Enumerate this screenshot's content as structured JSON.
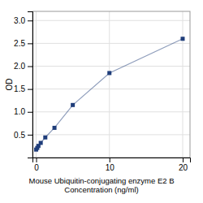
{
  "chart_data": {
    "type": "line",
    "xlabel": "Mouse Ubiquitin-conjugating enzyme E2 B\nConcentration (ng/ml)",
    "ylabel": "OD",
    "x": [
      0,
      0.156,
      0.3125,
      0.625,
      1.25,
      2.5,
      5,
      10,
      20
    ],
    "series": [
      {
        "values": [
          0.174,
          0.21,
          0.255,
          0.32,
          0.44,
          0.65,
          1.15,
          1.85,
          2.6
        ],
        "color": "#1f3d7a",
        "marker": "square"
      }
    ],
    "xlim": [
      -0.5,
      21
    ],
    "ylim": [
      0.0,
      3.2
    ],
    "xticks": [
      0,
      10,
      20
    ],
    "yticks": [
      0.5,
      {
        "value": 1,
        "label": "1.0"
      },
      1.5,
      {
        "value": 2,
        "label": "2.0"
      },
      2.5,
      {
        "value": 3,
        "label": "3.0"
      }
    ],
    "grid": true
  }
}
